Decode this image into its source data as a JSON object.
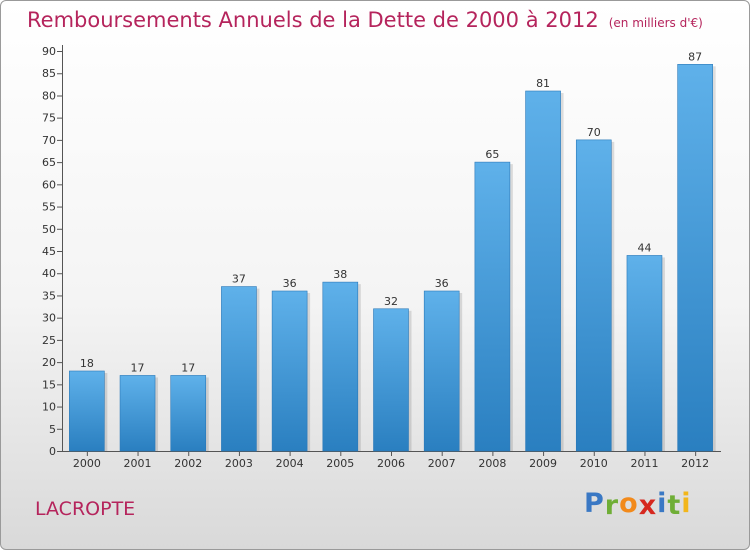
{
  "title": "Remboursements Annuels de la Dette de 2000 à 2012",
  "unit": "(en milliers d'€)",
  "place": "LACROPTE",
  "logo": {
    "letters": [
      "P",
      "r",
      "o",
      "x",
      "i",
      "t",
      "i"
    ],
    "colors": [
      "#3a78c4",
      "#6fae36",
      "#f28a1b",
      "#d6281f",
      "#3a78c4",
      "#6fae36",
      "#f2b61b"
    ]
  },
  "colors": {
    "bar_top": "#5fb1ea",
    "bar_bottom": "#2a7fc0",
    "title": "#b5245c"
  },
  "chart_data": {
    "type": "bar",
    "categories": [
      "2000",
      "2001",
      "2002",
      "2003",
      "2004",
      "2005",
      "2006",
      "2007",
      "2008",
      "2009",
      "2010",
      "2011",
      "2012"
    ],
    "values": [
      18,
      17,
      17,
      37,
      36,
      38,
      32,
      36,
      65,
      81,
      70,
      44,
      87
    ],
    "title": "Remboursements Annuels de la Dette de 2000 à 2012",
    "xlabel": "",
    "ylabel": "",
    "ylim": [
      0,
      90
    ],
    "yticks": [
      0,
      5,
      10,
      15,
      20,
      25,
      30,
      35,
      40,
      45,
      50,
      55,
      60,
      65,
      70,
      75,
      80,
      85,
      90
    ],
    "grid": false,
    "legend": "none"
  }
}
